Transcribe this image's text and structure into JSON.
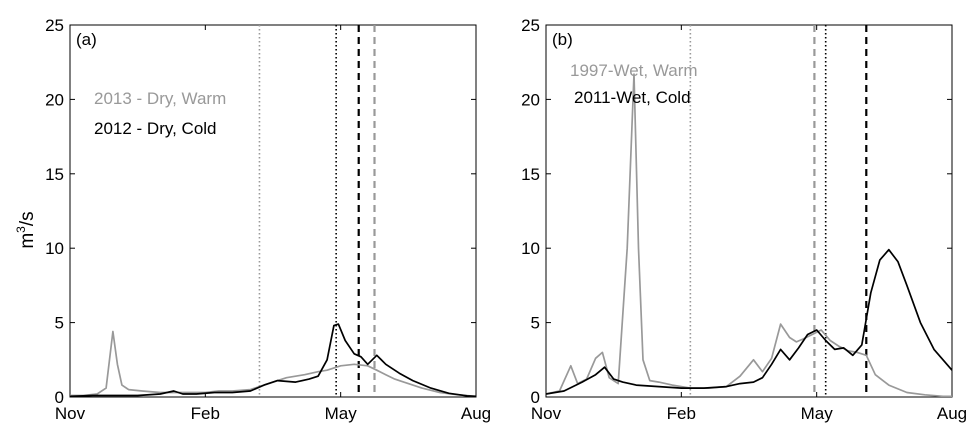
{
  "ylabel": "m",
  "ylabel_sup": "3",
  "ylabel_tail": "/s",
  "chart_data": [
    {
      "type": "line",
      "panel_label": "(a)",
      "x_tick_labels": [
        "Nov",
        "Feb",
        "May",
        "Aug"
      ],
      "x_ticks": [
        0,
        3,
        6,
        9
      ],
      "xlim": [
        0,
        9
      ],
      "ylim": [
        0,
        25
      ],
      "y_ticks": [
        0,
        5,
        10,
        15,
        20,
        25
      ],
      "xunit": "months since Nov 1",
      "series": [
        {
          "name": "2013 - Dry, Warm",
          "color": "#999999",
          "x": [
            0,
            0.3,
            0.6,
            0.8,
            0.95,
            1.05,
            1.15,
            1.3,
            1.6,
            2.0,
            2.5,
            3.0,
            3.3,
            3.6,
            4.0,
            4.3,
            4.5,
            4.8,
            5.2,
            5.5,
            5.7,
            6.0,
            6.3,
            6.6,
            6.8,
            7.0,
            7.2,
            7.5,
            7.8,
            8.2,
            8.6,
            9.0
          ],
          "y": [
            0.1,
            0.1,
            0.2,
            0.6,
            4.4,
            2.2,
            0.8,
            0.5,
            0.4,
            0.3,
            0.3,
            0.3,
            0.4,
            0.4,
            0.5,
            0.8,
            1.0,
            1.3,
            1.5,
            1.7,
            1.8,
            2.1,
            2.2,
            2.1,
            1.8,
            1.5,
            1.2,
            0.9,
            0.6,
            0.3,
            0.15,
            0.05
          ]
        },
        {
          "name": "2012 - Dry, Cold",
          "color": "#000000",
          "x": [
            0,
            0.5,
            1.0,
            1.5,
            2.0,
            2.3,
            2.5,
            2.8,
            3.2,
            3.6,
            4.0,
            4.3,
            4.6,
            5.0,
            5.3,
            5.5,
            5.7,
            5.85,
            5.95,
            6.1,
            6.3,
            6.45,
            6.6,
            6.8,
            7.0,
            7.3,
            7.6,
            8.0,
            8.4,
            8.8,
            9.0
          ],
          "y": [
            0.05,
            0.1,
            0.1,
            0.1,
            0.2,
            0.4,
            0.2,
            0.2,
            0.3,
            0.3,
            0.4,
            0.8,
            1.1,
            1.0,
            1.2,
            1.4,
            2.5,
            4.8,
            4.9,
            3.8,
            2.9,
            2.7,
            2.2,
            2.8,
            2.2,
            1.6,
            1.1,
            0.6,
            0.25,
            0.08,
            0.05
          ]
        }
      ],
      "vlines": [
        {
          "x": 4.2,
          "style": "dotted",
          "color": "#999999"
        },
        {
          "x": 5.9,
          "style": "dotted",
          "color": "#000000"
        },
        {
          "x": 6.4,
          "style": "dashed",
          "color": "#000000"
        },
        {
          "x": 6.75,
          "style": "dashed",
          "color": "#999999"
        }
      ]
    },
    {
      "type": "line",
      "panel_label": "(b)",
      "x_tick_labels": [
        "Nov",
        "Feb",
        "May",
        "Aug"
      ],
      "x_ticks": [
        0,
        3,
        6,
        9
      ],
      "xlim": [
        0,
        9
      ],
      "ylim": [
        0,
        25
      ],
      "y_ticks": [
        0,
        5,
        10,
        15,
        20,
        25
      ],
      "xunit": "months since Nov 1",
      "series": [
        {
          "name": "1997-Wet, Warm",
          "color": "#999999",
          "x": [
            0,
            0.3,
            0.55,
            0.7,
            0.9,
            1.1,
            1.25,
            1.4,
            1.6,
            1.8,
            1.95,
            2.05,
            2.15,
            2.3,
            2.5,
            2.8,
            3.2,
            3.6,
            4.0,
            4.3,
            4.6,
            4.8,
            5.0,
            5.2,
            5.4,
            5.55,
            5.7,
            5.9,
            6.1,
            6.3,
            6.5,
            6.7,
            6.9,
            7.1,
            7.3,
            7.6,
            8.0,
            8.4,
            8.8,
            9.0
          ],
          "y": [
            0.2,
            0.4,
            2.1,
            0.9,
            1.2,
            2.6,
            3.0,
            1.3,
            0.9,
            10.0,
            21.7,
            10.0,
            2.5,
            1.1,
            1.0,
            0.8,
            0.6,
            0.6,
            0.7,
            1.4,
            2.5,
            1.7,
            2.6,
            4.9,
            4.0,
            3.7,
            3.9,
            4.2,
            4.5,
            3.8,
            3.4,
            3.1,
            3.0,
            2.8,
            1.5,
            0.8,
            0.3,
            0.15,
            0.05,
            0.05
          ]
        },
        {
          "name": "2011-Wet, Cold",
          "color": "#000000",
          "x": [
            0,
            0.4,
            0.8,
            1.1,
            1.3,
            1.5,
            1.7,
            2.0,
            2.5,
            3.0,
            3.5,
            4.0,
            4.3,
            4.6,
            4.8,
            5.0,
            5.2,
            5.4,
            5.6,
            5.8,
            6.0,
            6.2,
            6.4,
            6.6,
            6.8,
            7.0,
            7.2,
            7.4,
            7.6,
            7.8,
            8.0,
            8.3,
            8.6,
            9.0
          ],
          "y": [
            0.2,
            0.4,
            1.0,
            1.5,
            2.0,
            1.2,
            1.0,
            0.8,
            0.7,
            0.6,
            0.6,
            0.7,
            0.9,
            1.0,
            1.3,
            2.2,
            3.2,
            2.5,
            3.3,
            4.2,
            4.5,
            3.8,
            3.2,
            3.3,
            2.8,
            3.5,
            7.0,
            9.2,
            9.9,
            9.1,
            7.5,
            5.0,
            3.2,
            1.8
          ]
        }
      ],
      "vlines": [
        {
          "x": 3.2,
          "style": "dotted",
          "color": "#999999"
        },
        {
          "x": 5.95,
          "style": "dashed",
          "color": "#999999"
        },
        {
          "x": 6.2,
          "style": "dotted",
          "color": "#000000"
        },
        {
          "x": 7.1,
          "style": "dashed",
          "color": "#000000"
        }
      ]
    }
  ]
}
